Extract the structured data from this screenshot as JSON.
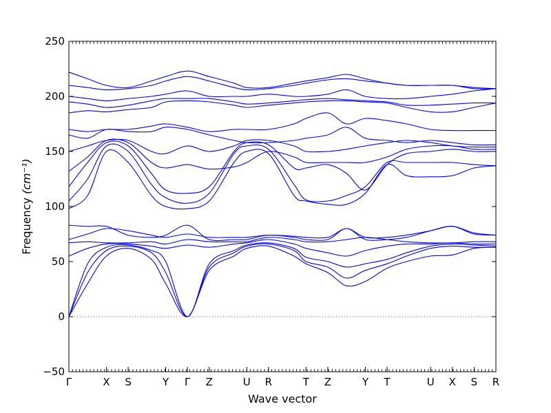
{
  "chart_data": {
    "type": "line",
    "xlabel": "Wave vector",
    "ylabel": "Frequency",
    "ylabel_unit": "(cm⁻¹)",
    "ylim": [
      -50,
      250
    ],
    "y_ticks": [
      -50,
      0,
      50,
      100,
      150,
      200,
      250
    ],
    "zero_line": true,
    "line_color": "#0000ff",
    "x_ticks": [
      {
        "label": "Γ",
        "x": 0.0
      },
      {
        "label": "X",
        "x": 0.1
      },
      {
        "label": "S",
        "x": 0.158
      },
      {
        "label": "Y",
        "x": 0.258
      },
      {
        "label": "Γ",
        "x": 0.316
      },
      {
        "label": "Z",
        "x": 0.374
      },
      {
        "label": "U",
        "x": 0.474
      },
      {
        "label": "R",
        "x": 0.532
      },
      {
        "label": "T",
        "x": 0.632
      },
      {
        "label": "Z",
        "x": 0.69
      },
      {
        "label": "Y",
        "x": 0.79
      },
      {
        "label": "T",
        "x": 0.848
      },
      {
        "label": "U",
        "x": 0.964
      },
      {
        "label": "X",
        "x": 1.022
      },
      {
        "label": "S",
        "x": 1.08
      },
      {
        "label": "R",
        "x": 1.138
      }
    ],
    "xlim": [
      0,
      1.138
    ],
    "series": [
      {
        "x": [
          0,
          0.05,
          0.1,
          0.158,
          0.22,
          0.258,
          0.316,
          0.374,
          0.44,
          0.474,
          0.532,
          0.6,
          0.632,
          0.69,
          0.74,
          0.79,
          0.848,
          0.9,
          0.964,
          1.022,
          1.08,
          1.138
        ],
        "y": [
          0,
          30,
          55,
          62,
          52,
          30,
          0,
          42,
          55,
          62,
          64,
          55,
          48,
          40,
          28,
          32,
          44,
          50,
          55,
          56,
          62,
          63
        ]
      },
      {
        "x": [
          0,
          0.05,
          0.1,
          0.158,
          0.22,
          0.258,
          0.316,
          0.374,
          0.44,
          0.474,
          0.532,
          0.6,
          0.632,
          0.69,
          0.74,
          0.79,
          0.848,
          0.9,
          0.964,
          1.022,
          1.08,
          1.138
        ],
        "y": [
          0,
          40,
          60,
          64,
          58,
          40,
          0,
          45,
          58,
          64,
          66,
          60,
          50,
          45,
          35,
          42,
          48,
          55,
          62,
          64,
          63,
          63
        ]
      },
      {
        "x": [
          0,
          0.05,
          0.1,
          0.158,
          0.22,
          0.258,
          0.316,
          0.374,
          0.44,
          0.474,
          0.532,
          0.6,
          0.632,
          0.69,
          0.74,
          0.79,
          0.848,
          0.9,
          0.964,
          1.022,
          1.08,
          1.138
        ],
        "y": [
          0,
          48,
          63,
          65,
          60,
          50,
          0,
          48,
          60,
          65,
          67,
          62,
          54,
          50,
          45,
          48,
          52,
          58,
          64,
          66,
          65,
          64
        ]
      },
      {
        "x": [
          0,
          0.05,
          0.1,
          0.158,
          0.22,
          0.258,
          0.316,
          0.374,
          0.44,
          0.474,
          0.532,
          0.6,
          0.632,
          0.69,
          0.74,
          0.79,
          0.848,
          0.9,
          0.964,
          1.022,
          1.08,
          1.138
        ],
        "y": [
          55,
          62,
          66,
          66,
          64,
          62,
          65,
          63,
          66,
          67,
          70,
          66,
          62,
          58,
          55,
          60,
          64,
          66,
          66,
          67,
          66,
          66
        ]
      },
      {
        "x": [
          0,
          0.05,
          0.1,
          0.158,
          0.22,
          0.258,
          0.316,
          0.374,
          0.44,
          0.474,
          0.532,
          0.6,
          0.632,
          0.69,
          0.74,
          0.79,
          0.848,
          0.9,
          0.964,
          1.022,
          1.08,
          1.138
        ],
        "y": [
          67,
          68,
          67,
          67,
          68,
          66,
          70,
          68,
          68,
          68,
          72,
          70,
          68,
          68,
          70,
          72,
          70,
          68,
          67,
          67,
          68,
          68
        ]
      },
      {
        "x": [
          0,
          0.05,
          0.1,
          0.158,
          0.22,
          0.258,
          0.316,
          0.374,
          0.44,
          0.474,
          0.532,
          0.6,
          0.632,
          0.69,
          0.74,
          0.79,
          0.848,
          0.9,
          0.964,
          1.022,
          1.08,
          1.138
        ],
        "y": [
          70,
          75,
          80,
          78,
          74,
          72,
          75,
          72,
          72,
          72,
          74,
          73,
          72,
          72,
          80,
          72,
          72,
          74,
          78,
          82,
          76,
          74
        ]
      },
      {
        "x": [
          0,
          0.05,
          0.1,
          0.158,
          0.22,
          0.258,
          0.316,
          0.374,
          0.44,
          0.474,
          0.532,
          0.6,
          0.632,
          0.69,
          0.74,
          0.79,
          0.848,
          0.9,
          0.964,
          1.022,
          1.08,
          1.138
        ],
        "y": [
          83,
          82,
          82,
          74,
          72,
          74,
          83,
          70,
          70,
          70,
          74,
          72,
          70,
          70,
          80,
          70,
          70,
          72,
          78,
          82,
          75,
          74
        ]
      },
      {
        "x": [
          0,
          0.05,
          0.1,
          0.158,
          0.22,
          0.258,
          0.316,
          0.374,
          0.44,
          0.474,
          0.532,
          0.6,
          0.632,
          0.69,
          0.74,
          0.79,
          0.848,
          0.9,
          0.964,
          1.022,
          1.08,
          1.138
        ],
        "y": [
          98,
          110,
          150,
          140,
          110,
          100,
          98,
          105,
          140,
          150,
          148,
          110,
          105,
          102,
          102,
          112,
          138,
          128,
          127,
          128,
          135,
          137
        ]
      },
      {
        "x": [
          0,
          0.05,
          0.1,
          0.158,
          0.22,
          0.258,
          0.316,
          0.374,
          0.44,
          0.474,
          0.532,
          0.6,
          0.632,
          0.69,
          0.74,
          0.79,
          0.848,
          0.9,
          0.964,
          1.022,
          1.08,
          1.138
        ],
        "y": [
          105,
          125,
          155,
          150,
          120,
          108,
          103,
          112,
          148,
          155,
          152,
          120,
          106,
          105,
          110,
          118,
          140,
          140,
          140,
          140,
          138,
          137
        ]
      },
      {
        "x": [
          0,
          0.05,
          0.1,
          0.158,
          0.22,
          0.258,
          0.316,
          0.374,
          0.44,
          0.474,
          0.532,
          0.6,
          0.632,
          0.69,
          0.74,
          0.79,
          0.848,
          0.9,
          0.964,
          1.022,
          1.08,
          1.138
        ],
        "y": [
          118,
          140,
          158,
          155,
          130,
          115,
          112,
          118,
          150,
          158,
          156,
          135,
          135,
          138,
          130,
          115,
          138,
          148,
          150,
          152,
          150,
          150
        ]
      },
      {
        "x": [
          0,
          0.05,
          0.1,
          0.158,
          0.22,
          0.258,
          0.316,
          0.374,
          0.44,
          0.474,
          0.532,
          0.6,
          0.632,
          0.69,
          0.74,
          0.79,
          0.848,
          0.9,
          0.964,
          1.022,
          1.08,
          1.138
        ],
        "y": [
          132,
          145,
          160,
          158,
          140,
          135,
          138,
          134,
          136,
          140,
          150,
          145,
          140,
          140,
          140,
          140,
          145,
          152,
          155,
          155,
          152,
          152
        ]
      },
      {
        "x": [
          0,
          0.05,
          0.1,
          0.158,
          0.22,
          0.258,
          0.316,
          0.374,
          0.44,
          0.474,
          0.532,
          0.6,
          0.632,
          0.69,
          0.74,
          0.79,
          0.848,
          0.9,
          0.964,
          1.022,
          1.08,
          1.138
        ],
        "y": [
          150,
          155,
          160,
          160,
          150,
          148,
          155,
          150,
          155,
          160,
          160,
          155,
          150,
          150,
          152,
          155,
          158,
          160,
          158,
          155,
          154,
          154
        ]
      },
      {
        "x": [
          0,
          0.05,
          0.1,
          0.158,
          0.22,
          0.258,
          0.316,
          0.374,
          0.44,
          0.474,
          0.532,
          0.6,
          0.632,
          0.69,
          0.74,
          0.79,
          0.848,
          0.9,
          0.964,
          1.022,
          1.08,
          1.138
        ],
        "y": [
          165,
          162,
          170,
          168,
          168,
          172,
          170,
          165,
          160,
          158,
          158,
          160,
          162,
          165,
          172,
          162,
          160,
          158,
          160,
          158,
          156,
          156
        ]
      },
      {
        "x": [
          0,
          0.05,
          0.1,
          0.158,
          0.22,
          0.258,
          0.316,
          0.374,
          0.44,
          0.474,
          0.532,
          0.6,
          0.632,
          0.69,
          0.74,
          0.79,
          0.848,
          0.9,
          0.964,
          1.022,
          1.08,
          1.138
        ],
        "y": [
          170,
          168,
          170,
          170,
          173,
          175,
          172,
          168,
          170,
          170,
          170,
          175,
          180,
          185,
          175,
          180,
          178,
          175,
          170,
          169,
          169,
          169
        ]
      },
      {
        "x": [
          0,
          0.05,
          0.1,
          0.158,
          0.22,
          0.258,
          0.316,
          0.374,
          0.44,
          0.474,
          0.532,
          0.6,
          0.632,
          0.69,
          0.74,
          0.79,
          0.848,
          0.9,
          0.964,
          1.022,
          1.08,
          1.138
        ],
        "y": [
          185,
          187,
          186,
          188,
          190,
          195,
          196,
          195,
          192,
          190,
          192,
          194,
          195,
          196,
          196,
          195,
          194,
          190,
          186,
          186,
          190,
          194
        ]
      },
      {
        "x": [
          0,
          0.05,
          0.1,
          0.158,
          0.22,
          0.258,
          0.316,
          0.374,
          0.44,
          0.474,
          0.532,
          0.6,
          0.632,
          0.69,
          0.74,
          0.79,
          0.848,
          0.9,
          0.964,
          1.022,
          1.08,
          1.138
        ],
        "y": [
          195,
          193,
          190,
          192,
          196,
          198,
          198,
          198,
          195,
          193,
          194,
          196,
          197,
          198,
          197,
          196,
          195,
          192,
          192,
          193,
          194,
          194
        ]
      },
      {
        "x": [
          0,
          0.05,
          0.1,
          0.158,
          0.22,
          0.258,
          0.316,
          0.374,
          0.44,
          0.474,
          0.532,
          0.6,
          0.632,
          0.69,
          0.74,
          0.79,
          0.848,
          0.9,
          0.964,
          1.022,
          1.08,
          1.138
        ],
        "y": [
          200,
          198,
          196,
          198,
          200,
          202,
          205,
          200,
          200,
          200,
          202,
          200,
          200,
          202,
          206,
          200,
          198,
          198,
          200,
          202,
          205,
          207
        ]
      },
      {
        "x": [
          0,
          0.05,
          0.1,
          0.158,
          0.22,
          0.258,
          0.316,
          0.374,
          0.44,
          0.474,
          0.532,
          0.6,
          0.632,
          0.69,
          0.74,
          0.79,
          0.848,
          0.9,
          0.964,
          1.022,
          1.08,
          1.138
        ],
        "y": [
          210,
          208,
          206,
          207,
          210,
          214,
          218,
          214,
          208,
          206,
          207,
          210,
          212,
          215,
          216,
          214,
          212,
          210,
          210,
          210,
          207,
          207
        ]
      },
      {
        "x": [
          0,
          0.05,
          0.1,
          0.158,
          0.22,
          0.258,
          0.316,
          0.374,
          0.44,
          0.474,
          0.532,
          0.6,
          0.632,
          0.69,
          0.74,
          0.79,
          0.848,
          0.9,
          0.964,
          1.022,
          1.08,
          1.138
        ],
        "y": [
          222,
          216,
          210,
          208,
          214,
          218,
          223,
          218,
          212,
          208,
          208,
          212,
          214,
          217,
          220,
          216,
          212,
          210,
          210,
          210,
          208,
          207
        ]
      }
    ]
  }
}
